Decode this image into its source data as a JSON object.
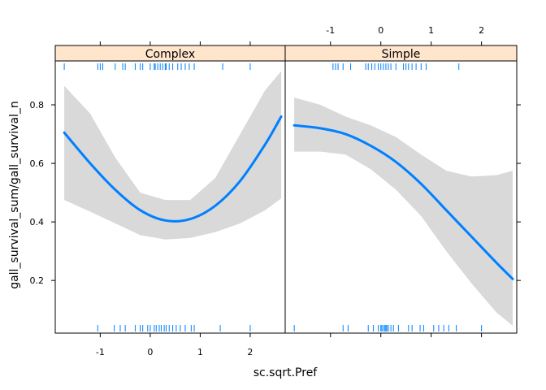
{
  "chart_data": {
    "type": "line",
    "xlabel": "sc.sqrt.Pref",
    "ylabel": "gall_survival_sum/gall_survival_n",
    "xlim": [
      -1.9,
      2.7
    ],
    "ylim": [
      0.02,
      0.95
    ],
    "x_ticks": [
      -1,
      0,
      1,
      2
    ],
    "x_tick_labels": [
      "-1",
      "0",
      "1",
      "2"
    ],
    "y_ticks": [
      0.2,
      0.4,
      0.6,
      0.8
    ],
    "y_tick_labels": [
      "0.2",
      "0.4",
      "0.6",
      "0.8"
    ],
    "colors": {
      "line": "#0080ff",
      "band": "#d9d9d9",
      "strip": "#ffe5cc",
      "rug": "#0080ff"
    },
    "panels": [
      {
        "name": "Complex",
        "series": {
          "x": [
            -1.72,
            -1.2,
            -0.7,
            -0.2,
            0.3,
            0.8,
            1.3,
            1.8,
            2.3,
            2.62
          ],
          "fit": [
            0.705,
            0.6,
            0.51,
            0.44,
            0.405,
            0.41,
            0.455,
            0.54,
            0.665,
            0.76
          ],
          "lower": [
            0.475,
            0.435,
            0.395,
            0.355,
            0.34,
            0.345,
            0.365,
            0.395,
            0.44,
            0.48
          ],
          "upper": [
            0.865,
            0.77,
            0.62,
            0.5,
            0.475,
            0.475,
            0.55,
            0.7,
            0.85,
            0.915
          ]
        },
        "rug_top": [
          -1.72,
          -1.05,
          -1.0,
          -0.95,
          -0.7,
          -0.55,
          -0.5,
          -0.3,
          -0.2,
          -0.15,
          0.0,
          0.08,
          0.1,
          0.15,
          0.2,
          0.25,
          0.3,
          0.32,
          0.38,
          0.45,
          0.55,
          0.62,
          0.7,
          0.78,
          0.88,
          1.45,
          2.0
        ],
        "rug_bottom": [
          -1.05,
          -0.72,
          -0.6,
          -0.5,
          -0.3,
          -0.2,
          -0.15,
          -0.05,
          0.0,
          0.08,
          0.12,
          0.18,
          0.22,
          0.28,
          0.32,
          0.38,
          0.45,
          0.52,
          0.6,
          0.7,
          0.82,
          0.88,
          1.4,
          2.0
        ]
      },
      {
        "name": "Simple",
        "series": {
          "x": [
            -1.72,
            -1.2,
            -0.7,
            -0.2,
            0.3,
            0.8,
            1.3,
            1.8,
            2.3,
            2.62
          ],
          "fit": [
            0.73,
            0.72,
            0.7,
            0.66,
            0.605,
            0.53,
            0.44,
            0.35,
            0.26,
            0.205
          ],
          "lower": [
            0.64,
            0.64,
            0.63,
            0.58,
            0.51,
            0.42,
            0.3,
            0.19,
            0.09,
            0.045
          ],
          "upper": [
            0.825,
            0.8,
            0.76,
            0.73,
            0.69,
            0.63,
            0.575,
            0.555,
            0.56,
            0.575
          ]
        },
        "rug_top": [
          -0.95,
          -0.9,
          -0.85,
          -0.75,
          -0.6,
          -0.3,
          -0.25,
          -0.18,
          -0.12,
          -0.05,
          0.0,
          0.05,
          0.1,
          0.15,
          0.2,
          0.3,
          0.45,
          0.5,
          0.55,
          0.62,
          0.7,
          0.8,
          0.9,
          1.55
        ],
        "rug_bottom": [
          -1.72,
          -0.75,
          -0.65,
          -0.25,
          -0.15,
          -0.05,
          0.0,
          0.02,
          0.05,
          0.08,
          0.1,
          0.12,
          0.15,
          0.2,
          0.25,
          0.35,
          0.55,
          0.62,
          0.78,
          0.85,
          1.05,
          1.15,
          1.25,
          1.35,
          1.5,
          2.0
        ]
      }
    ]
  }
}
